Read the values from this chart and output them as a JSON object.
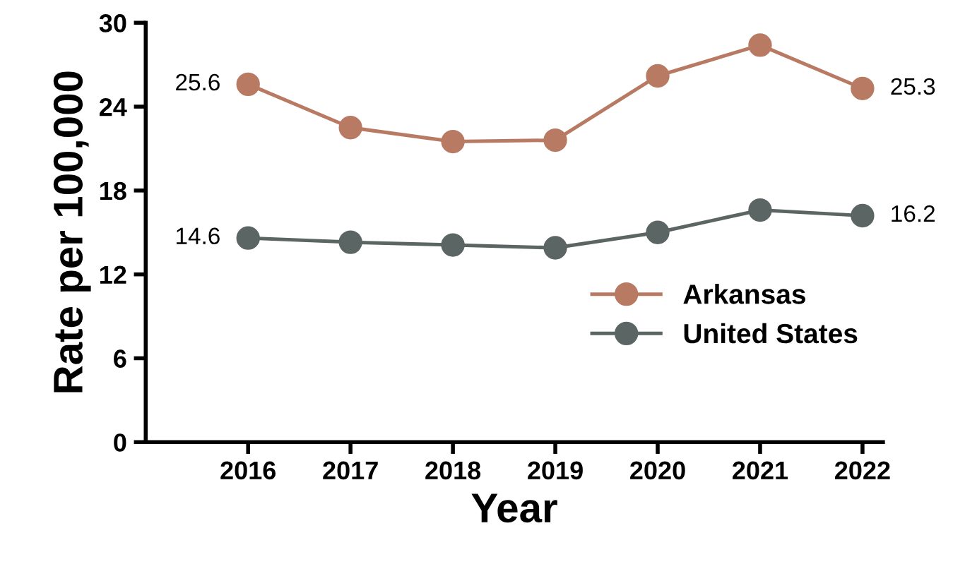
{
  "chart_data": {
    "type": "line",
    "xlabel": "Year",
    "ylabel": "Rate per 100,000",
    "categories": [
      "2016",
      "2017",
      "2018",
      "2019",
      "2020",
      "2021",
      "2022"
    ],
    "series": [
      {
        "name": "Arkansas",
        "color": "#b97a64",
        "values": [
          25.6,
          22.5,
          21.5,
          21.6,
          26.2,
          28.4,
          25.3
        ],
        "value_labels": [
          "25.6",
          null,
          null,
          null,
          null,
          null,
          "25.3"
        ]
      },
      {
        "name": "United States",
        "color": "#5b6563",
        "values": [
          14.6,
          14.3,
          14.1,
          13.9,
          15.0,
          16.6,
          16.2
        ],
        "value_labels": [
          "14.6",
          null,
          null,
          null,
          null,
          null,
          "16.2"
        ]
      }
    ],
    "ylim": [
      0,
      30
    ],
    "yticks": [
      0,
      6,
      12,
      18,
      24,
      30
    ],
    "grid": false,
    "legend": "right",
    "marker": "circle",
    "line_style": "solid"
  }
}
